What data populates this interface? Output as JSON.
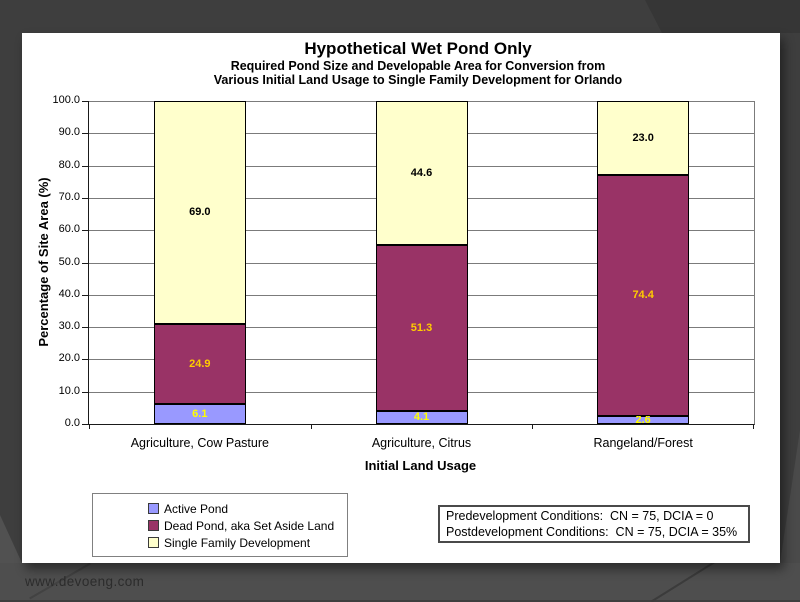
{
  "slide": {
    "title": "Hypothetical Wet Pond Only",
    "subtitle_line1": "Required Pond Size and Developable Area for Conversion from",
    "subtitle_line2": "Various Initial Land Usage to Single Family Development for Orlando"
  },
  "chart_data": {
    "type": "bar",
    "stacked": true,
    "title": "Hypothetical Wet Pond Only",
    "subtitle": "Required Pond Size and Developable Area for Conversion from Various Initial Land Usage to Single Family Development for Orlando",
    "categories": [
      "Agriculture, Cow Pasture",
      "Agriculture, Citrus",
      "Rangeland/Forest"
    ],
    "series": [
      {
        "name": "Active Pond",
        "color": "#9999FF",
        "label_color": "#FFFF00",
        "values": [
          6.1,
          4.1,
          2.6
        ]
      },
      {
        "name": "Dead Pond, aka Set Aside Land",
        "color": "#993366",
        "label_color": "#FFCC00",
        "values": [
          24.9,
          51.3,
          74.4
        ]
      },
      {
        "name": "Single Family Development",
        "color": "#FFFFCC",
        "label_color": "#000000",
        "values": [
          69.0,
          44.6,
          23.0
        ]
      }
    ],
    "xlabel": "Initial Land Usage",
    "ylabel": "Percentage of Site Area (%)",
    "ylim": [
      0,
      100
    ],
    "ytick_step": 10,
    "ytick_labels": [
      "0.0",
      "10.0",
      "20.0",
      "30.0",
      "40.0",
      "50.0",
      "60.0",
      "70.0",
      "80.0",
      "90.0",
      "100.0"
    ],
    "grid": true,
    "legend_position": "bottom-left"
  },
  "info_box": {
    "line1": "Predevelopment Conditions:  CN = 75, DCIA = 0",
    "line2": "Postdevelopment Conditions:  CN = 75, DCIA = 35%"
  },
  "footer": {
    "url": "www.devoeng.com"
  }
}
